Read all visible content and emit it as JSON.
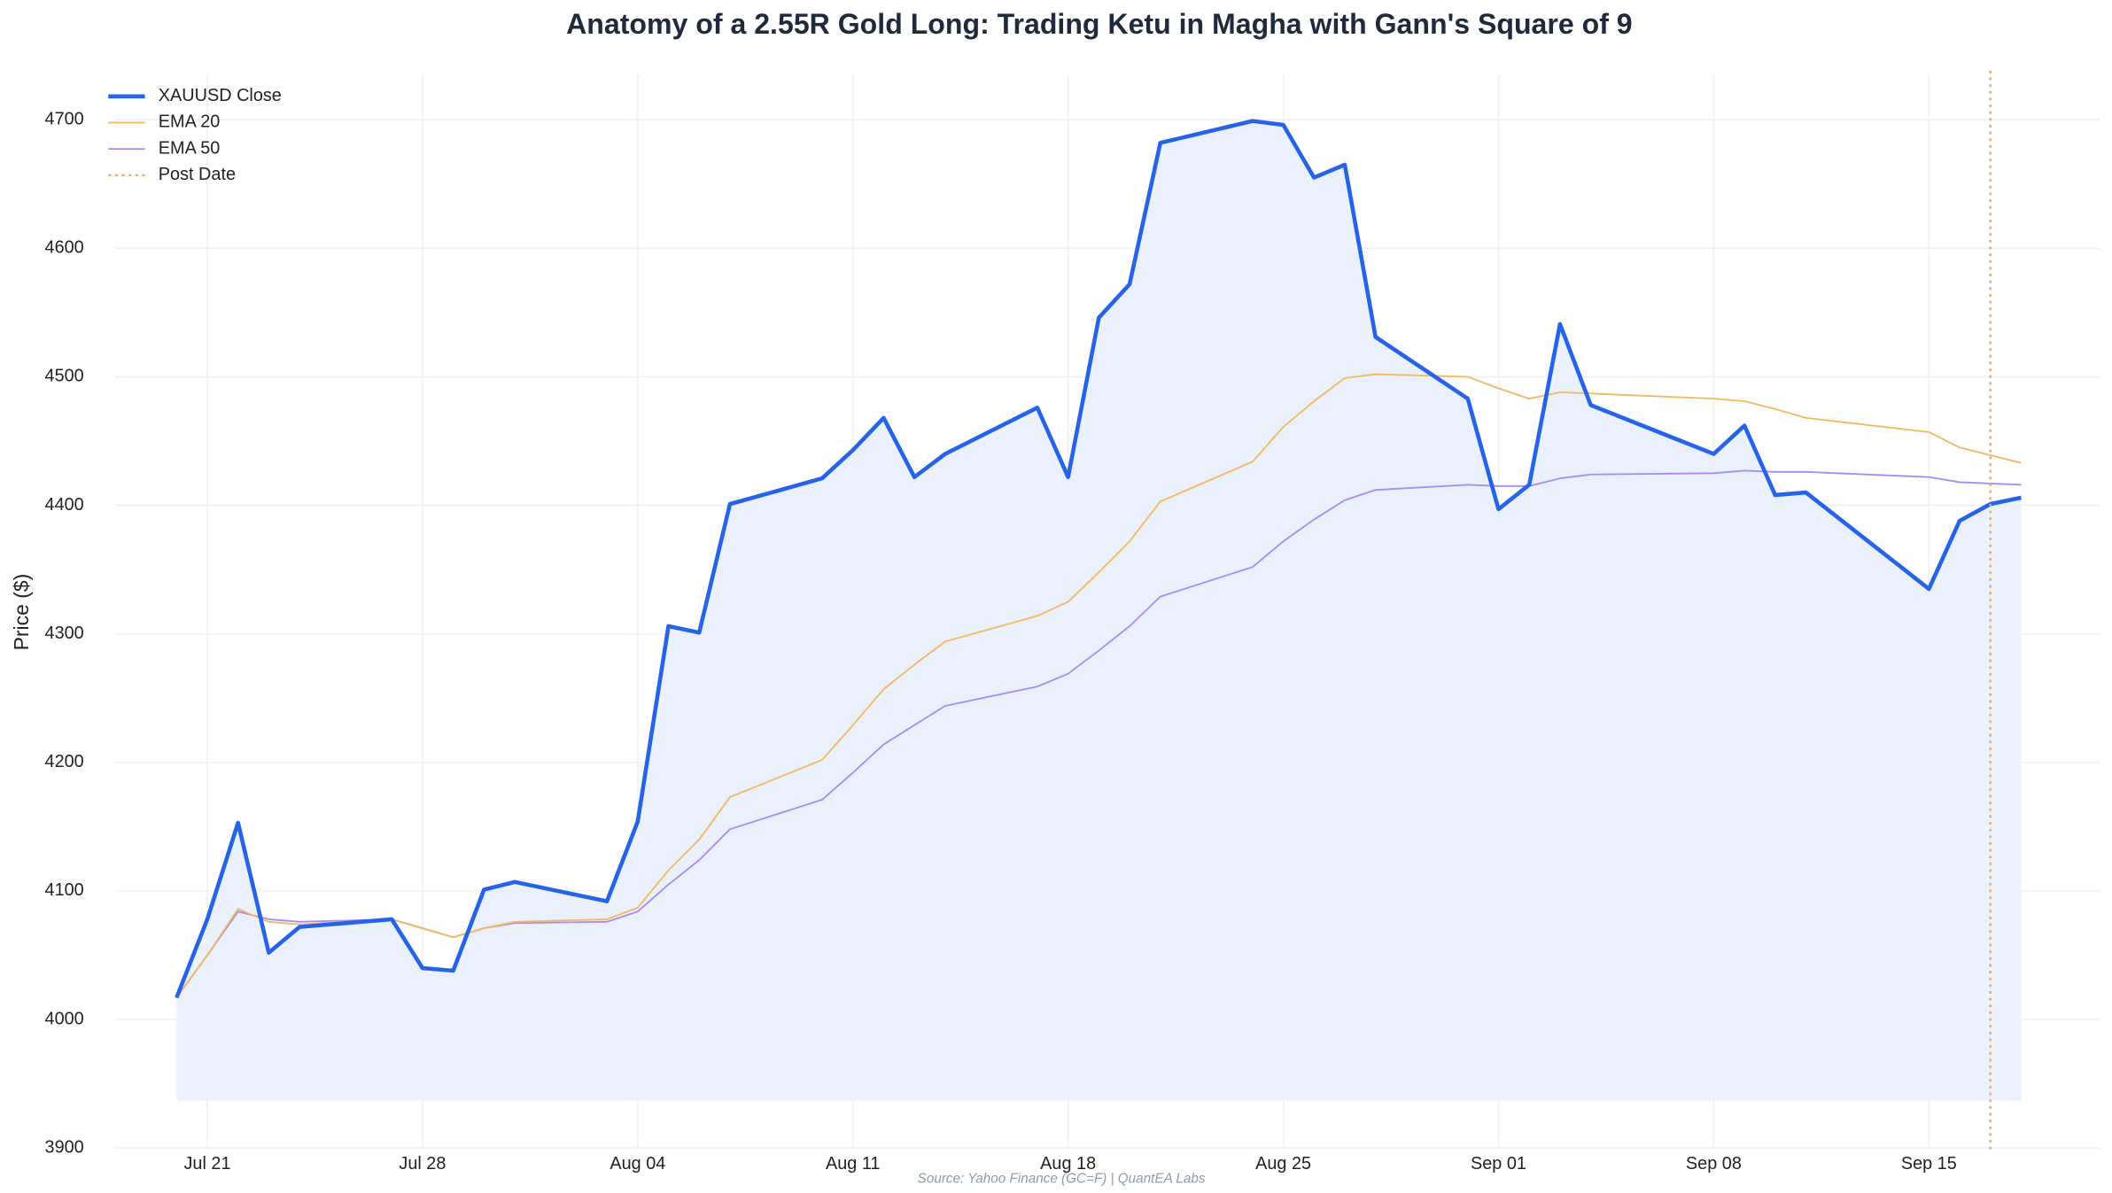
{
  "chart_data": {
    "type": "line",
    "title": "Anatomy of a 2.55R Gold Long: Trading Ketu in Magha with Gann's Square of 9",
    "ylabel": "Price ($)",
    "source": "Source: Yahoo Finance (GC=F) | QuantEA Labs",
    "x": [
      "07-20",
      "07-21",
      "07-22",
      "07-23",
      "07-24",
      "07-27",
      "07-28",
      "07-29",
      "07-30",
      "07-31",
      "08-03",
      "08-04",
      "08-05",
      "08-06",
      "08-07",
      "08-10",
      "08-11",
      "08-12",
      "08-13",
      "08-14",
      "08-17",
      "08-18",
      "08-19",
      "08-20",
      "08-21",
      "08-24",
      "08-25",
      "08-26",
      "08-27",
      "08-28",
      "08-31",
      "09-01",
      "09-02",
      "09-03",
      "09-04",
      "09-08",
      "09-09",
      "09-10",
      "09-11",
      "09-15",
      "09-16",
      "09-17",
      "09-18"
    ],
    "series": [
      {
        "name": "XAUUSD Close",
        "color": "#2563eb",
        "width": 3,
        "fill": "#e8f0fc",
        "fill_to": 3937,
        "values": [
          4017,
          4078,
          4153,
          4052,
          4072,
          4078,
          4040,
          4038,
          4101,
          4107,
          4092,
          4154,
          4306,
          4301,
          4401,
          4421,
          4443,
          4468,
          4422,
          4440,
          4476,
          4422,
          4546,
          4572,
          4682,
          4699,
          4696,
          4655,
          4665,
          4531,
          4483,
          4397,
          4416,
          4541,
          4478,
          4440,
          4462,
          4408,
          4410,
          4335,
          4388,
          4401,
          4406
        ]
      },
      {
        "name": "EMA 20",
        "color": "#f4b860",
        "width": 1.2,
        "values": [
          4017,
          4050,
          4086,
          4076,
          4074,
          4078,
          4071,
          4064,
          4071,
          4076,
          4078,
          4087,
          4116,
          4140,
          4173,
          4202,
          4229,
          4257,
          4276,
          4294,
          4314,
          4325,
          4348,
          4372,
          4403,
          4434,
          4461,
          4481,
          4499,
          4502,
          4500,
          4491,
          4483,
          4488,
          4487,
          4483,
          4481,
          4475,
          4468,
          4457,
          4445,
          4439,
          4433
        ]
      },
      {
        "name": "EMA 50",
        "color": "#a78bfa",
        "width": 1.2,
        "values": [
          4017,
          4050,
          4084,
          4078,
          4076,
          4078,
          4071,
          4064,
          4071,
          4075,
          4076,
          4084,
          4105,
          4124,
          4148,
          4171,
          4192,
          4214,
          4229,
          4244,
          4259,
          4269,
          4287,
          4306,
          4329,
          4352,
          4372,
          4389,
          4404,
          4412,
          4416,
          4415,
          4415,
          4421,
          4424,
          4425,
          4427,
          4426,
          4426,
          4422,
          4418,
          4417,
          4416
        ]
      }
    ],
    "vlines": [
      {
        "name": "Post Date",
        "x": "09-17",
        "color": "#f4a261"
      }
    ],
    "xlim": [
      "07-18",
      "09-21"
    ],
    "xticks": [
      {
        "value": "07-21",
        "label": "Jul 21"
      },
      {
        "value": "07-28",
        "label": "Jul 28"
      },
      {
        "value": "08-04",
        "label": "Aug 04"
      },
      {
        "value": "08-11",
        "label": "Aug 11"
      },
      {
        "value": "08-18",
        "label": "Aug 18"
      },
      {
        "value": "08-25",
        "label": "Aug 25"
      },
      {
        "value": "09-01",
        "label": "Sep 01"
      },
      {
        "value": "09-08",
        "label": "Sep 08"
      },
      {
        "value": "09-15",
        "label": "Sep 15"
      }
    ],
    "ylim": [
      3900,
      4735
    ],
    "yticks": [
      3900,
      4000,
      4100,
      4200,
      4300,
      4400,
      4500,
      4600,
      4700
    ],
    "grid": true,
    "legend": "upper left"
  }
}
